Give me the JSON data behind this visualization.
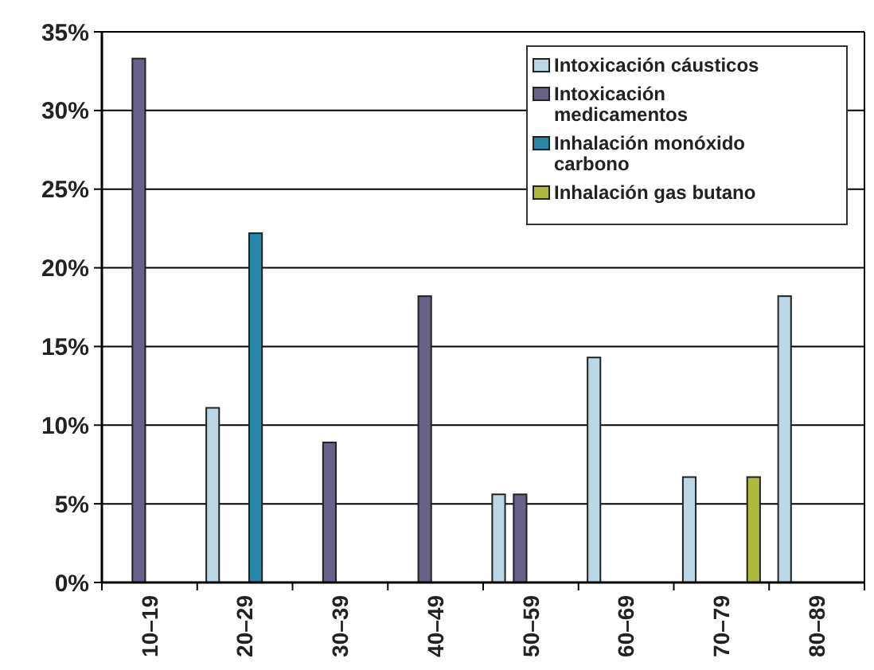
{
  "chart_data": {
    "type": "bar",
    "categories": [
      "10–19",
      "20–29",
      "30–39",
      "40–49",
      "50–59",
      "60–69",
      "70–79",
      "80–89"
    ],
    "series": [
      {
        "name": "Intoxicación cáusticos",
        "color": "#bcd6e4",
        "values": [
          null,
          11.1,
          null,
          null,
          5.6,
          14.3,
          6.7,
          18.2
        ]
      },
      {
        "name": "Intoxicación medicamentos",
        "color": "#666288",
        "values": [
          33.3,
          null,
          8.9,
          18.2,
          5.6,
          null,
          null,
          null
        ]
      },
      {
        "name": "Inhalación monóxido carbono",
        "color": "#2788a8",
        "values": [
          null,
          22.2,
          null,
          null,
          null,
          null,
          null,
          null
        ]
      },
      {
        "name": "Inhalación gas butano",
        "color": "#adba3e",
        "values": [
          null,
          null,
          null,
          null,
          null,
          null,
          6.7,
          null
        ]
      }
    ],
    "ylim": [
      0,
      35
    ],
    "yticks": [
      {
        "value": 0,
        "label": "0%"
      },
      {
        "value": 5,
        "label": "5%"
      },
      {
        "value": 10,
        "label": "10%"
      },
      {
        "value": 15,
        "label": "15%"
      },
      {
        "value": 20,
        "label": "20%"
      },
      {
        "value": 25,
        "label": "25%"
      },
      {
        "value": 30,
        "label": "30%"
      },
      {
        "value": 35,
        "label": "35%"
      }
    ],
    "grid": "y",
    "legend": "top right"
  }
}
